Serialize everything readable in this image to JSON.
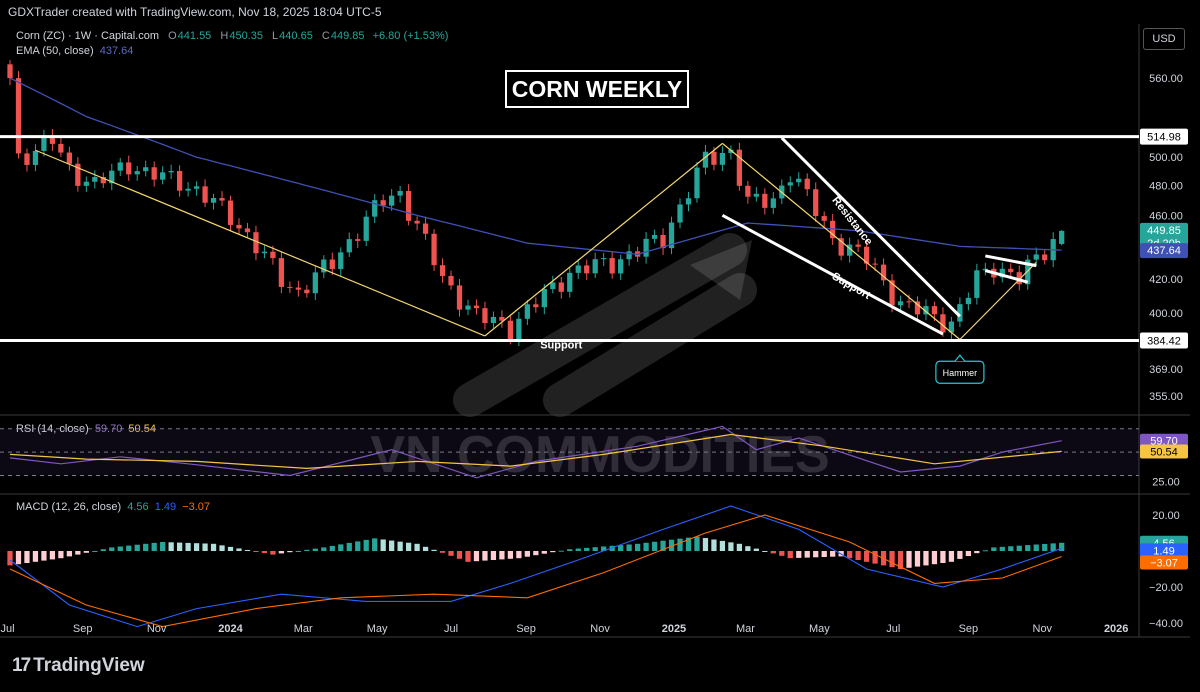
{
  "header": {
    "attribution": "GDXTrader created with TradingView.com, Nov 18, 2025 18:04 UTC-5",
    "currency": "USD",
    "title_box": "CORN WEEKLY"
  },
  "legends": {
    "price": {
      "name": "Corn (ZC) · 1W · Capital.com",
      "open_label": "O",
      "open": "441.55",
      "high_label": "H",
      "high": "450.35",
      "low_label": "L",
      "low": "440.65",
      "close_label": "C",
      "close": "449.85",
      "change": "+6.80 (+1.53%)"
    },
    "ema": {
      "name": "EMA (50, close)",
      "value": "437.64"
    },
    "rsi": {
      "name": "RSI (14, close)",
      "value": "59.70",
      "ma": "50.54"
    },
    "macd": {
      "name": "MACD (12, 26, close)",
      "hist": "4.56",
      "macd": "1.49",
      "signal": "−3.07"
    }
  },
  "watermark": "VN COMMODITIES",
  "brand": {
    "logo": "17",
    "name": "TradingView"
  },
  "colors": {
    "up": "#26a69a",
    "down": "#ef5350",
    "ema": "#3f51b5",
    "pattern": "#f5d76e",
    "rsi": "#7e57c2",
    "rsi_ma": "#f5c542",
    "macd": "#2962ff",
    "signal": "#ff6d00",
    "bg": "#000000"
  },
  "chart_data": [
    {
      "type": "candlestick",
      "title": "CORN WEEKLY",
      "y_scale": "log",
      "ylim": [
        347,
        600
      ],
      "xlim": [
        "2023-07-03",
        "2026-01-19"
      ],
      "y_ticks": [
        "560.00",
        "500.00",
        "480.00",
        "460.00",
        "420.00",
        "400.00",
        "369.00",
        "355.00"
      ],
      "x_ticks": [
        {
          "label": "Jul",
          "date": "2023-07-01"
        },
        {
          "label": "Sep",
          "date": "2023-09-01"
        },
        {
          "label": "Nov",
          "date": "2023-11-01"
        },
        {
          "label": "2024",
          "date": "2024-01-01"
        },
        {
          "label": "Mar",
          "date": "2024-03-01"
        },
        {
          "label": "May",
          "date": "2024-05-01"
        },
        {
          "label": "Jul",
          "date": "2024-07-01"
        },
        {
          "label": "Sep",
          "date": "2024-09-01"
        },
        {
          "label": "Nov",
          "date": "2024-11-01"
        },
        {
          "label": "2025",
          "date": "2025-01-01"
        },
        {
          "label": "Mar",
          "date": "2025-03-01"
        },
        {
          "label": "May",
          "date": "2025-05-01"
        },
        {
          "label": "Jul",
          "date": "2025-07-01"
        },
        {
          "label": "Sep",
          "date": "2025-09-01"
        },
        {
          "label": "Nov",
          "date": "2025-11-01"
        },
        {
          "label": "2026",
          "date": "2026-01-01"
        }
      ],
      "anchors": [
        {
          "date": "2023-07-03",
          "close": 560
        },
        {
          "date": "2023-07-10",
          "close": 500
        },
        {
          "date": "2023-07-24",
          "close": 505
        },
        {
          "date": "2023-08-07",
          "close": 512
        },
        {
          "date": "2023-08-21",
          "close": 492
        },
        {
          "date": "2023-09-11",
          "close": 480
        },
        {
          "date": "2023-10-09",
          "close": 496
        },
        {
          "date": "2023-10-23",
          "close": 488
        },
        {
          "date": "2023-11-20",
          "close": 484
        },
        {
          "date": "2024-01-01",
          "close": 460
        },
        {
          "date": "2024-02-12",
          "close": 420
        },
        {
          "date": "2024-02-26",
          "close": 412
        },
        {
          "date": "2024-03-25",
          "close": 430
        },
        {
          "date": "2024-05-06",
          "close": 470
        },
        {
          "date": "2024-05-20",
          "close": 475
        },
        {
          "date": "2024-06-24",
          "close": 420
        },
        {
          "date": "2024-07-22",
          "close": 398
        },
        {
          "date": "2024-08-19",
          "close": 392
        },
        {
          "date": "2024-10-07",
          "close": 424
        },
        {
          "date": "2024-11-11",
          "close": 430
        },
        {
          "date": "2024-12-23",
          "close": 445
        },
        {
          "date": "2025-01-27",
          "close": 498
        },
        {
          "date": "2025-02-17",
          "close": 505
        },
        {
          "date": "2025-03-03",
          "close": 468
        },
        {
          "date": "2025-03-24",
          "close": 470
        },
        {
          "date": "2025-04-07",
          "close": 490
        },
        {
          "date": "2025-05-12",
          "close": 445
        },
        {
          "date": "2025-06-09",
          "close": 432
        },
        {
          "date": "2025-07-07",
          "close": 405
        },
        {
          "date": "2025-08-04",
          "close": 398
        },
        {
          "date": "2025-08-18",
          "close": 394
        },
        {
          "date": "2025-09-08",
          "close": 420
        },
        {
          "date": "2025-09-22",
          "close": 428
        },
        {
          "date": "2025-10-13",
          "close": 420
        },
        {
          "date": "2025-10-27",
          "close": 432
        },
        {
          "date": "2025-11-17",
          "close": 449.85
        }
      ],
      "ema_50": [
        {
          "date": "2023-07-03",
          "value": 560
        },
        {
          "date": "2023-09-04",
          "value": 530
        },
        {
          "date": "2023-12-04",
          "value": 500
        },
        {
          "date": "2024-03-04",
          "value": 480
        },
        {
          "date": "2024-06-03",
          "value": 460
        },
        {
          "date": "2024-09-02",
          "value": 442
        },
        {
          "date": "2024-12-02",
          "value": 435
        },
        {
          "date": "2025-03-03",
          "value": 455
        },
        {
          "date": "2025-06-02",
          "value": 450
        },
        {
          "date": "2025-08-25",
          "value": 440
        },
        {
          "date": "2025-11-17",
          "value": 437.64
        }
      ],
      "horizontal_levels": [
        {
          "price": 514.98,
          "label": "514.98"
        },
        {
          "price": 384.42,
          "label": "384.42"
        }
      ],
      "price_badges": [
        {
          "price": 449.85,
          "label": "449.85",
          "sub": "2d 20h"
        },
        {
          "price": 437.64,
          "label": "437.64"
        }
      ],
      "pattern_lines": [
        [
          {
            "date": "2023-07-24",
            "price": 505
          },
          {
            "date": "2024-07-29",
            "price": 387
          }
        ],
        [
          {
            "date": "2024-07-29",
            "price": 387
          },
          {
            "date": "2025-02-10",
            "price": 510
          }
        ],
        [
          {
            "date": "2025-02-10",
            "price": 510
          },
          {
            "date": "2025-08-25",
            "price": 385
          }
        ],
        [
          {
            "date": "2025-08-25",
            "price": 385
          },
          {
            "date": "2025-10-27",
            "price": 430
          }
        ]
      ],
      "trend_lines": [
        [
          {
            "date": "2025-03-31",
            "price": 514
          },
          {
            "date": "2025-08-25",
            "price": 398
          }
        ],
        [
          {
            "date": "2025-02-10",
            "price": 460
          },
          {
            "date": "2025-08-11",
            "price": 388
          }
        ],
        [
          {
            "date": "2025-09-15",
            "price": 434
          },
          {
            "date": "2025-10-27",
            "price": 428
          }
        ],
        [
          {
            "date": "2025-09-15",
            "price": 425
          },
          {
            "date": "2025-10-20",
            "price": 418
          }
        ]
      ],
      "annotations": [
        {
          "text": "Support",
          "date": "2024-09-30",
          "price": 380
        },
        {
          "text": "Resistance",
          "date": "2025-05-26",
          "price": 455,
          "rotate": 52
        },
        {
          "text": "Support",
          "date": "2025-05-26",
          "price": 414,
          "rotate": 30
        },
        {
          "text": "Hammer",
          "date": "2025-08-25",
          "price": 370,
          "boxed": true
        }
      ]
    },
    {
      "type": "line",
      "title": "RSI (14, close)",
      "ylim": [
        15,
        80
      ],
      "y_ticks": [
        "25.00"
      ],
      "guides": [
        70,
        50,
        30
      ],
      "series": [
        {
          "name": "RSI",
          "color": "#7e57c2",
          "points": [
            {
              "date": "2023-07-03",
              "value": 45
            },
            {
              "date": "2023-08-14",
              "value": 40
            },
            {
              "date": "2023-10-02",
              "value": 46
            },
            {
              "date": "2023-11-27",
              "value": 40
            },
            {
              "date": "2024-02-19",
              "value": 30
            },
            {
              "date": "2024-05-13",
              "value": 52
            },
            {
              "date": "2024-07-22",
              "value": 28
            },
            {
              "date": "2024-09-09",
              "value": 42
            },
            {
              "date": "2024-12-02",
              "value": 55
            },
            {
              "date": "2025-02-10",
              "value": 72
            },
            {
              "date": "2025-03-10",
              "value": 52
            },
            {
              "date": "2025-04-14",
              "value": 62
            },
            {
              "date": "2025-07-07",
              "value": 33
            },
            {
              "date": "2025-08-25",
              "value": 38
            },
            {
              "date": "2025-09-29",
              "value": 50
            },
            {
              "date": "2025-11-17",
              "value": 59.7
            }
          ]
        },
        {
          "name": "RSI MA",
          "color": "#f5c542",
          "points": [
            {
              "date": "2023-07-03",
              "value": 48
            },
            {
              "date": "2023-09-04",
              "value": 44
            },
            {
              "date": "2023-12-04",
              "value": 42
            },
            {
              "date": "2024-03-04",
              "value": 36
            },
            {
              "date": "2024-06-03",
              "value": 42
            },
            {
              "date": "2024-08-19",
              "value": 38
            },
            {
              "date": "2024-11-04",
              "value": 48
            },
            {
              "date": "2025-02-17",
              "value": 65
            },
            {
              "date": "2025-05-05",
              "value": 55
            },
            {
              "date": "2025-08-04",
              "value": 40
            },
            {
              "date": "2025-11-17",
              "value": 50.54
            }
          ]
        }
      ],
      "price_badges": [
        {
          "value": 59.7,
          "label": "59.70"
        },
        {
          "value": 50.54,
          "label": "50.54"
        }
      ]
    },
    {
      "type": "bar",
      "title": "MACD (12, 26, close)",
      "ylim": [
        -45,
        30
      ],
      "y_ticks": [
        "20.00",
        "−20.00",
        "−40.00"
      ],
      "histogram": [
        {
          "date": "2023-07-03",
          "value": -8
        },
        {
          "date": "2023-08-14",
          "value": -4
        },
        {
          "date": "2023-09-25",
          "value": 2
        },
        {
          "date": "2023-11-06",
          "value": 5
        },
        {
          "date": "2023-12-18",
          "value": 4
        },
        {
          "date": "2024-02-05",
          "value": -2
        },
        {
          "date": "2024-03-18",
          "value": 2
        },
        {
          "date": "2024-04-29",
          "value": 7
        },
        {
          "date": "2024-06-03",
          "value": 4
        },
        {
          "date": "2024-07-15",
          "value": -6
        },
        {
          "date": "2024-08-26",
          "value": -4
        },
        {
          "date": "2024-10-07",
          "value": 1
        },
        {
          "date": "2024-12-02",
          "value": 4
        },
        {
          "date": "2025-01-20",
          "value": 8
        },
        {
          "date": "2025-02-24",
          "value": 4
        },
        {
          "date": "2025-04-07",
          "value": -4
        },
        {
          "date": "2025-05-19",
          "value": -3
        },
        {
          "date": "2025-07-07",
          "value": -10
        },
        {
          "date": "2025-08-18",
          "value": -6
        },
        {
          "date": "2025-09-22",
          "value": 2
        },
        {
          "date": "2025-11-17",
          "value": 4.56
        }
      ],
      "series": [
        {
          "name": "MACD",
          "color": "#2962ff",
          "points": [
            {
              "date": "2023-07-03",
              "value": -5
            },
            {
              "date": "2023-08-21",
              "value": -30
            },
            {
              "date": "2023-10-16",
              "value": -42
            },
            {
              "date": "2023-12-04",
              "value": -32
            },
            {
              "date": "2024-02-12",
              "value": -24
            },
            {
              "date": "2024-04-22",
              "value": -28
            },
            {
              "date": "2024-07-01",
              "value": -28
            },
            {
              "date": "2024-08-19",
              "value": -18
            },
            {
              "date": "2024-10-14",
              "value": -5
            },
            {
              "date": "2024-12-23",
              "value": 12
            },
            {
              "date": "2025-02-17",
              "value": 25
            },
            {
              "date": "2025-04-14",
              "value": 12
            },
            {
              "date": "2025-06-09",
              "value": -10
            },
            {
              "date": "2025-08-11",
              "value": -20
            },
            {
              "date": "2025-09-29",
              "value": -10
            },
            {
              "date": "2025-11-17",
              "value": 1.49
            }
          ]
        },
        {
          "name": "Signal",
          "color": "#ff6d00",
          "points": [
            {
              "date": "2023-07-03",
              "value": -10
            },
            {
              "date": "2023-09-04",
              "value": -30
            },
            {
              "date": "2023-11-06",
              "value": -42
            },
            {
              "date": "2024-01-22",
              "value": -32
            },
            {
              "date": "2024-04-01",
              "value": -26
            },
            {
              "date": "2024-06-17",
              "value": -24
            },
            {
              "date": "2024-09-02",
              "value": -26
            },
            {
              "date": "2024-11-04",
              "value": -12
            },
            {
              "date": "2025-01-27",
              "value": 10
            },
            {
              "date": "2025-03-17",
              "value": 20
            },
            {
              "date": "2025-05-26",
              "value": 5
            },
            {
              "date": "2025-08-04",
              "value": -18
            },
            {
              "date": "2025-09-29",
              "value": -15
            },
            {
              "date": "2025-11-17",
              "value": -3.07
            }
          ]
        }
      ],
      "price_badges": [
        {
          "value": 4.56,
          "label": "4.56"
        },
        {
          "value": 1.49,
          "label": "1.49"
        },
        {
          "value": -3.07,
          "label": "−3.07"
        }
      ]
    }
  ]
}
